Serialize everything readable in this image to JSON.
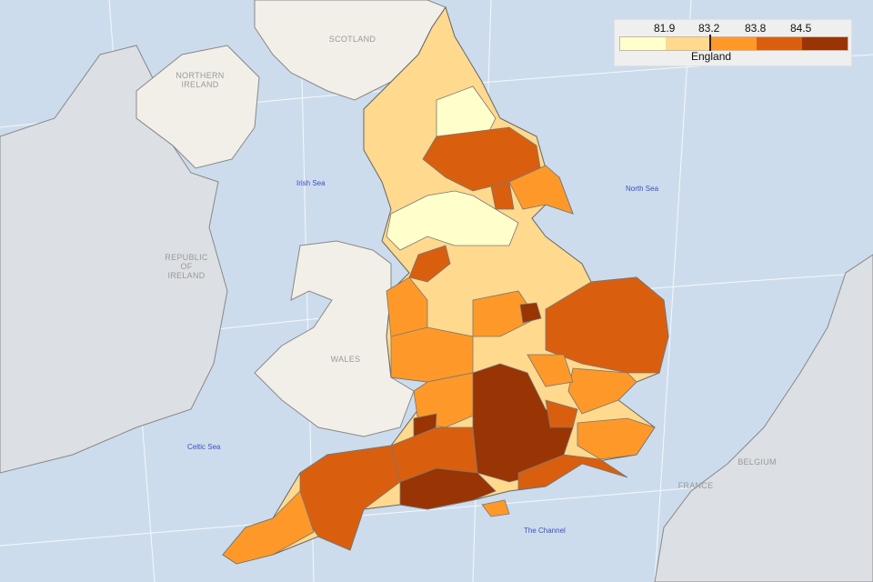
{
  "legend": {
    "breaks": [
      "81.9",
      "83.2",
      "83.8",
      "84.5"
    ],
    "colors": [
      "#ffffcc",
      "#fed98e",
      "#fe9929",
      "#d95f0e",
      "#993404"
    ],
    "reference_label": "England",
    "reference_value": 83.2
  },
  "labels": {
    "scotland": "SCOTLAND",
    "northern_ireland": [
      "NORTHERN",
      "IRELAND"
    ],
    "ireland": [
      "REPUBLIC",
      "OF",
      "IRELAND"
    ],
    "wales": "WALES",
    "france": "FRANCE",
    "belgium": "BELGIUM"
  },
  "seas": {
    "irish": "Irish Sea",
    "north": "North Sea",
    "celtic": "Celtic Sea",
    "channel": "The Channel"
  },
  "colors": {
    "sea": "#cddcec",
    "land": "#f2efe9",
    "ireland": "#dcdfe4",
    "border": "#666666"
  }
}
